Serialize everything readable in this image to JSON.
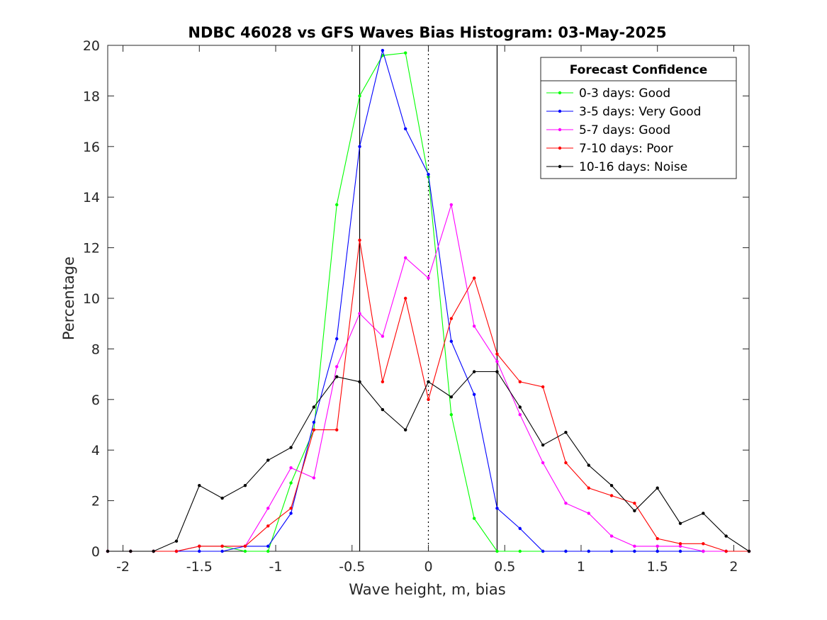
{
  "chart_data": {
    "type": "line",
    "title": "NDBC 46028 vs GFS Waves Bias Histogram: 03-May-2025",
    "xlabel": "Wave height, m, bias",
    "ylabel": "Percentage",
    "xlim": [
      -2.1,
      2.1
    ],
    "ylim": [
      0,
      20
    ],
    "xticks": [
      -2,
      -1.5,
      -1,
      -0.5,
      0,
      0.5,
      1,
      1.5,
      2
    ],
    "xtick_labels": [
      "-2",
      "-1.5",
      "-1",
      "-0.5",
      "0",
      "0.5",
      "1",
      "1.5",
      "2"
    ],
    "yticks": [
      0,
      2,
      4,
      6,
      8,
      10,
      12,
      14,
      16,
      18,
      20
    ],
    "ytick_labels": [
      "0",
      "2",
      "4",
      "6",
      "8",
      "10",
      "12",
      "14",
      "16",
      "18",
      "20"
    ],
    "grid": false,
    "legend_title": "Forecast Confidence",
    "legend_position": "top-right",
    "vertical_lines": [
      {
        "x": -0.45,
        "style": "solid",
        "color": "#000000"
      },
      {
        "x": 0,
        "style": "dotted",
        "color": "#000000"
      },
      {
        "x": 0.45,
        "style": "solid",
        "color": "#000000"
      }
    ],
    "x": [
      -2.1,
      -1.95,
      -1.8,
      -1.65,
      -1.5,
      -1.35,
      -1.2,
      -1.05,
      -0.9,
      -0.75,
      -0.6,
      -0.45,
      -0.3,
      -0.15,
      0,
      0.15,
      0.3,
      0.45,
      0.6,
      0.75,
      0.9,
      1.05,
      1.2,
      1.35,
      1.5,
      1.65,
      1.8,
      1.95,
      2.1
    ],
    "series": [
      {
        "name": "0-3 days: Good",
        "color": "#00ff00",
        "values": [
          0,
          0,
          0,
          0,
          0.2,
          0.2,
          0,
          0,
          2.7,
          4.8,
          13.7,
          18.0,
          19.6,
          19.7,
          14.8,
          5.4,
          1.3,
          0,
          0,
          0,
          0,
          0,
          0,
          0,
          0,
          0,
          0,
          0,
          0
        ]
      },
      {
        "name": "3-5 days: Very Good",
        "color": "#0000ff",
        "values": [
          0,
          0,
          0,
          0,
          0,
          0,
          0.2,
          0.2,
          1.5,
          5.1,
          8.4,
          16.0,
          19.8,
          16.7,
          14.9,
          8.3,
          6.2,
          1.7,
          0.9,
          0,
          0,
          0,
          0,
          0,
          0,
          0,
          0,
          0,
          0
        ]
      },
      {
        "name": "5-7 days: Good",
        "color": "#ff00ff",
        "values": [
          0,
          0,
          0,
          0,
          0.2,
          0.2,
          0.2,
          1.7,
          3.3,
          2.9,
          7.3,
          9.4,
          8.5,
          11.6,
          10.8,
          13.7,
          8.9,
          7.5,
          5.4,
          3.5,
          1.9,
          1.5,
          0.6,
          0.2,
          0.2,
          0.2,
          0,
          0,
          0
        ]
      },
      {
        "name": "7-10 days: Poor",
        "color": "#ff0000",
        "values": [
          0,
          0,
          0,
          0,
          0.2,
          0.2,
          0.2,
          1.0,
          1.7,
          4.8,
          4.8,
          12.3,
          6.7,
          10.0,
          6.0,
          9.2,
          10.8,
          7.8,
          6.7,
          6.5,
          3.5,
          2.5,
          2.2,
          1.9,
          0.5,
          0.3,
          0.3,
          0,
          0
        ]
      },
      {
        "name": "10-16 days: Noise",
        "color": "#000000",
        "values": [
          0,
          0,
          0,
          0.4,
          2.6,
          2.1,
          2.6,
          3.6,
          4.1,
          5.7,
          6.9,
          6.7,
          5.6,
          4.8,
          6.7,
          6.1,
          7.1,
          7.1,
          5.7,
          4.2,
          4.7,
          3.4,
          2.6,
          1.6,
          2.5,
          1.1,
          1.5,
          0.6,
          0
        ]
      }
    ]
  }
}
